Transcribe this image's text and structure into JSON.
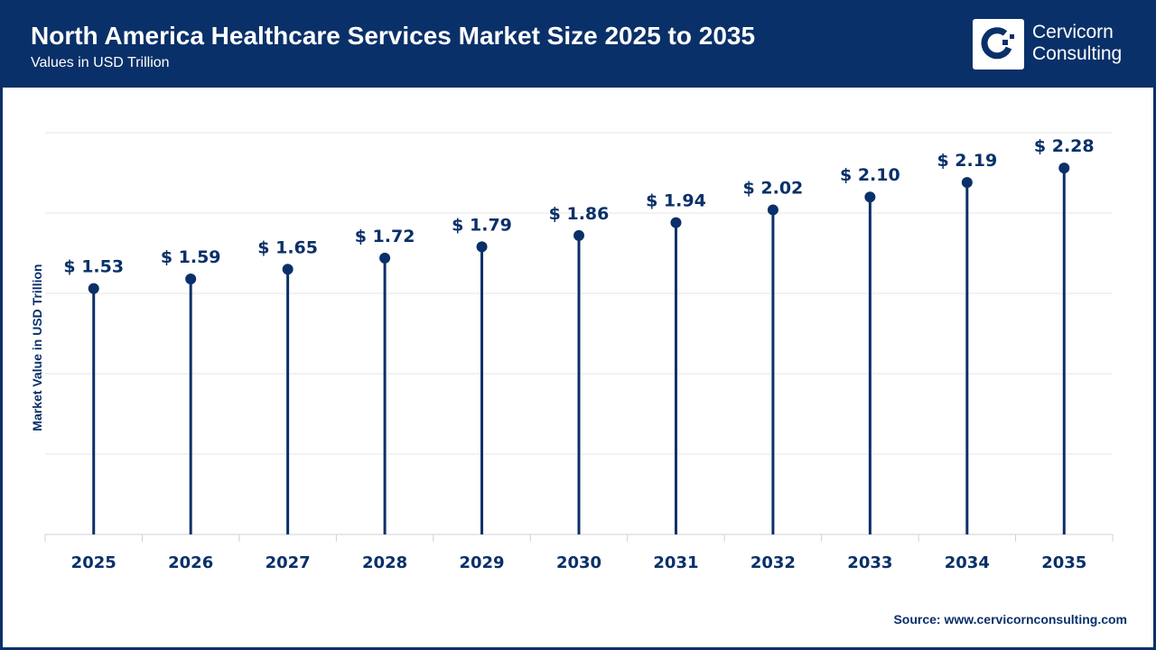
{
  "header": {
    "title": "North America Healthcare Services Market Size 2025 to 2035",
    "subtitle": "Values in USD Trillion",
    "logo_text_line1": "Cervicorn",
    "logo_text_line2": "Consulting"
  },
  "source": "Source: www.cervicornconsulting.com",
  "colors": {
    "primary": "#0a3069",
    "grid": "#e6e6e6"
  },
  "chart_data": {
    "type": "lollipop",
    "categories": [
      "2025",
      "2026",
      "2027",
      "2028",
      "2029",
      "2030",
      "2031",
      "2032",
      "2033",
      "2034",
      "2035"
    ],
    "values": [
      1.53,
      1.59,
      1.65,
      1.72,
      1.79,
      1.86,
      1.94,
      2.02,
      2.1,
      2.19,
      2.28
    ],
    "data_labels": [
      "$ 1.53",
      "$ 1.59",
      "$ 1.65",
      "$ 1.72",
      "$ 1.79",
      "$ 1.86",
      "$ 1.94",
      "$ 2.02",
      "$ 2.10",
      "$ 2.19",
      "$ 2.28"
    ],
    "ylabel": "Market Value in USD Trillion",
    "xlabel": "",
    "ylim": [
      0,
      2.5
    ],
    "grid": true,
    "grid_step": 0.5,
    "y_tick_labels_shown": false
  }
}
